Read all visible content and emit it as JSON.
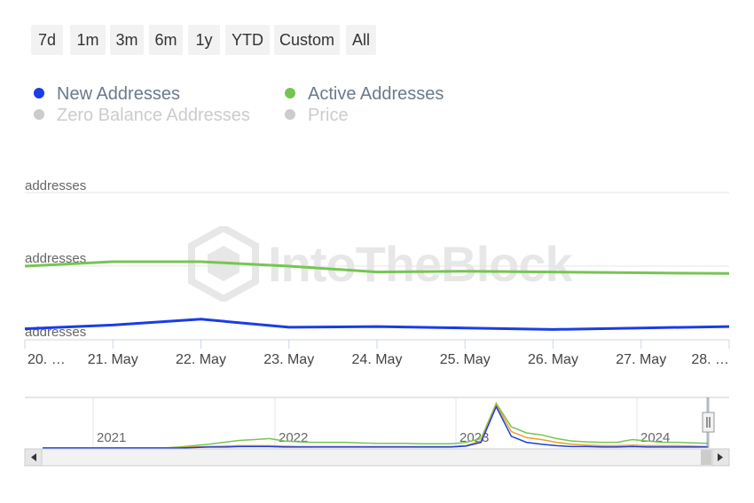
{
  "ranges": [
    "7d",
    "1m",
    "3m",
    "6m",
    "1y",
    "YTD",
    "Custom",
    "All"
  ],
  "legend": [
    {
      "label": "New Addresses",
      "color": "#1a3de6",
      "enabled": true
    },
    {
      "label": "Active Addresses",
      "color": "#76c553",
      "enabled": true
    },
    {
      "label": "Zero Balance Addresses",
      "color": "#cccccc",
      "enabled": false
    },
    {
      "label": "Price",
      "color": "#cccccc",
      "enabled": false
    }
  ],
  "watermark": "IntoTheBlock",
  "chart_data": {
    "type": "line",
    "x": [
      "20. …",
      "21. May",
      "22. May",
      "23. May",
      "24. May",
      "25. May",
      "26. May",
      "27. May",
      "28. …"
    ],
    "y_tick_labels": [
      "addresses",
      "addresses",
      "addresses"
    ],
    "series": [
      {
        "name": "Active Addresses",
        "color": "#76c553",
        "values": [
          1.0,
          1.06,
          1.06,
          1.0,
          0.92,
          0.93,
          0.92,
          0.91,
          0.9
        ]
      },
      {
        "name": "New Addresses",
        "color": "#1a3de6",
        "values": [
          0.15,
          0.2,
          0.28,
          0.17,
          0.18,
          0.16,
          0.14,
          0.16,
          0.18
        ]
      }
    ],
    "ylim": [
      0,
      2
    ],
    "grid": true,
    "navigator": {
      "year_labels": [
        "2021",
        "2022",
        "2023",
        "2024"
      ],
      "series": [
        {
          "name": "Active Addresses",
          "color": "#76c553",
          "values": [
            0,
            0,
            0,
            0,
            0,
            0,
            0,
            0,
            0,
            0.02,
            0.05,
            0.08,
            0.12,
            0.16,
            0.18,
            0.2,
            0.15,
            0.13,
            0.12,
            0.12,
            0.12,
            0.11,
            0.1,
            0.1,
            0.1,
            0.09,
            0.09,
            0.09,
            0.12,
            0.2,
            0.95,
            0.45,
            0.32,
            0.28,
            0.2,
            0.15,
            0.13,
            0.12,
            0.12,
            0.18,
            0.15,
            0.12,
            0.12,
            0.11,
            0.1
          ]
        },
        {
          "name": "Price",
          "color": "#f0a020",
          "values": [
            0,
            0,
            0,
            0,
            0,
            0,
            0,
            0,
            0,
            0.01,
            0.02,
            0.03,
            0.04,
            0.05,
            0.05,
            0.05,
            0.04,
            0.03,
            0.03,
            0.03,
            0.03,
            0.03,
            0.03,
            0.03,
            0.03,
            0.03,
            0.03,
            0.03,
            0.05,
            0.15,
            0.92,
            0.35,
            0.22,
            0.18,
            0.12,
            0.08,
            0.06,
            0.05,
            0.05,
            0.06,
            0.05,
            0.05,
            0.05,
            0.04,
            0.03
          ]
        },
        {
          "name": "New Addresses",
          "color": "#1a3de6",
          "values": [
            0,
            0,
            0,
            0,
            0,
            0,
            0,
            0,
            0,
            0,
            0.01,
            0.02,
            0.02,
            0.03,
            0.03,
            0.03,
            0.02,
            0.02,
            0.02,
            0.02,
            0.02,
            0.02,
            0.02,
            0.02,
            0.02,
            0.02,
            0.02,
            0.02,
            0.04,
            0.12,
            0.88,
            0.25,
            0.12,
            0.08,
            0.05,
            0.03,
            0.03,
            0.02,
            0.02,
            0.03,
            0.02,
            0.02,
            0.02,
            0.02,
            0.02
          ]
        }
      ]
    }
  }
}
